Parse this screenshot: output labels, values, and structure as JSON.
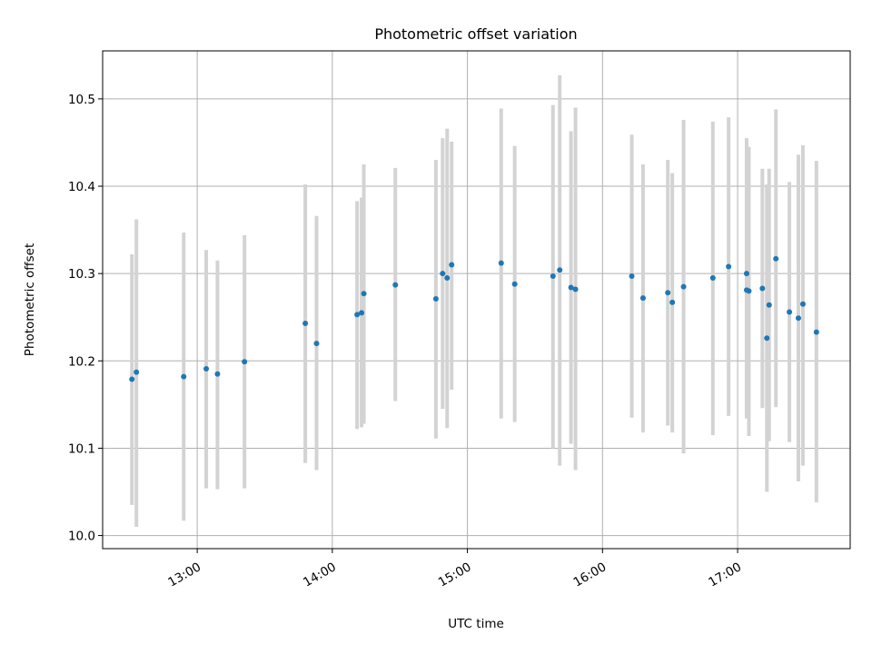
{
  "chart_data": {
    "type": "scatter",
    "title": "Photometric offset variation",
    "xlabel": "UTC time",
    "ylabel": "Photometric offset",
    "x_axis": {
      "type": "time",
      "range": [
        "12:18",
        "17:50"
      ],
      "tick_labels": [
        "13:00",
        "14:00",
        "15:00",
        "16:00",
        "17:00"
      ]
    },
    "y_axis": {
      "range": [
        9.985,
        10.555
      ],
      "ticks": [
        10.0,
        10.1,
        10.2,
        10.3,
        10.4,
        10.5
      ],
      "tick_labels": [
        "10.0",
        "10.1",
        "10.2",
        "10.3",
        "10.4",
        "10.5"
      ]
    },
    "grid": true,
    "colors": {
      "points": "#1f77b4",
      "error_bars": "#d3d3d3"
    },
    "points": [
      {
        "t": "12:31",
        "y": 10.179,
        "lo": 10.035,
        "hi": 10.322
      },
      {
        "t": "12:33",
        "y": 10.187,
        "lo": 10.01,
        "hi": 10.362
      },
      {
        "t": "12:54",
        "y": 10.182,
        "lo": 10.017,
        "hi": 10.347
      },
      {
        "t": "13:04",
        "y": 10.191,
        "lo": 10.054,
        "hi": 10.327
      },
      {
        "t": "13:09",
        "y": 10.185,
        "lo": 10.053,
        "hi": 10.315
      },
      {
        "t": "13:21",
        "y": 10.199,
        "lo": 10.054,
        "hi": 10.344
      },
      {
        "t": "13:48",
        "y": 10.243,
        "lo": 10.083,
        "hi": 10.402
      },
      {
        "t": "13:53",
        "y": 10.22,
        "lo": 10.075,
        "hi": 10.366
      },
      {
        "t": "14:11",
        "y": 10.253,
        "lo": 10.122,
        "hi": 10.383
      },
      {
        "t": "14:13",
        "y": 10.255,
        "lo": 10.124,
        "hi": 10.387
      },
      {
        "t": "14:14",
        "y": 10.277,
        "lo": 10.128,
        "hi": 10.425
      },
      {
        "t": "14:28",
        "y": 10.287,
        "lo": 10.154,
        "hi": 10.421
      },
      {
        "t": "14:46",
        "y": 10.271,
        "lo": 10.111,
        "hi": 10.43
      },
      {
        "t": "14:49",
        "y": 10.3,
        "lo": 10.145,
        "hi": 10.455
      },
      {
        "t": "14:51",
        "y": 10.295,
        "lo": 10.123,
        "hi": 10.466
      },
      {
        "t": "14:53",
        "y": 10.31,
        "lo": 10.167,
        "hi": 10.451
      },
      {
        "t": "15:15",
        "y": 10.312,
        "lo": 10.134,
        "hi": 10.489
      },
      {
        "t": "15:21",
        "y": 10.288,
        "lo": 10.13,
        "hi": 10.446
      },
      {
        "t": "15:38",
        "y": 10.297,
        "lo": 10.1,
        "hi": 10.493
      },
      {
        "t": "15:41",
        "y": 10.304,
        "lo": 10.08,
        "hi": 10.527
      },
      {
        "t": "15:46",
        "y": 10.284,
        "lo": 10.105,
        "hi": 10.463
      },
      {
        "t": "15:48",
        "y": 10.282,
        "lo": 10.075,
        "hi": 10.49
      },
      {
        "t": "16:13",
        "y": 10.297,
        "lo": 10.135,
        "hi": 10.459
      },
      {
        "t": "16:18",
        "y": 10.272,
        "lo": 10.118,
        "hi": 10.425
      },
      {
        "t": "16:29",
        "y": 10.278,
        "lo": 10.126,
        "hi": 10.43
      },
      {
        "t": "16:31",
        "y": 10.267,
        "lo": 10.118,
        "hi": 10.415
      },
      {
        "t": "16:36",
        "y": 10.285,
        "lo": 10.094,
        "hi": 10.476
      },
      {
        "t": "16:49",
        "y": 10.295,
        "lo": 10.115,
        "hi": 10.474
      },
      {
        "t": "16:56",
        "y": 10.308,
        "lo": 10.137,
        "hi": 10.479
      },
      {
        "t": "17:04",
        "y": 10.281,
        "lo": 10.134,
        "hi": 10.429
      },
      {
        "t": "17:04",
        "y": 10.3,
        "lo": 10.145,
        "hi": 10.455
      },
      {
        "t": "17:05",
        "y": 10.28,
        "lo": 10.114,
        "hi": 10.445
      },
      {
        "t": "17:11",
        "y": 10.283,
        "lo": 10.146,
        "hi": 10.42
      },
      {
        "t": "17:13",
        "y": 10.226,
        "lo": 10.05,
        "hi": 10.402
      },
      {
        "t": "17:14",
        "y": 10.264,
        "lo": 10.108,
        "hi": 10.42
      },
      {
        "t": "17:17",
        "y": 10.317,
        "lo": 10.147,
        "hi": 10.488
      },
      {
        "t": "17:23",
        "y": 10.256,
        "lo": 10.107,
        "hi": 10.405
      },
      {
        "t": "17:27",
        "y": 10.249,
        "lo": 10.062,
        "hi": 10.436
      },
      {
        "t": "17:29",
        "y": 10.265,
        "lo": 10.08,
        "hi": 10.447
      },
      {
        "t": "17:35",
        "y": 10.233,
        "lo": 10.038,
        "hi": 10.429
      }
    ]
  }
}
